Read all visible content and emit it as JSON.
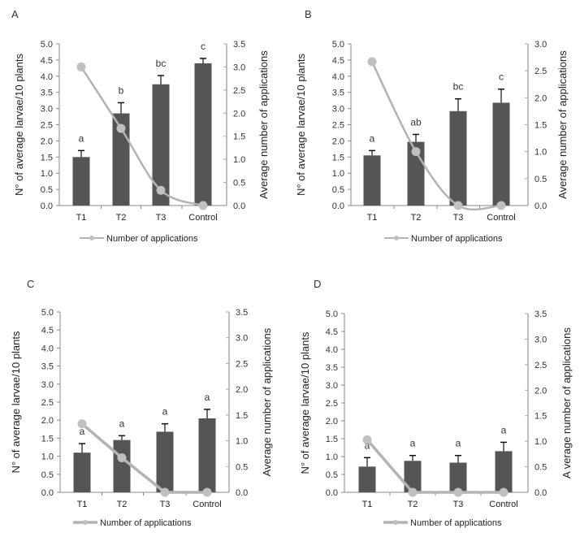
{
  "colors": {
    "bar": "#555555",
    "error_bar": "#111111",
    "line": "#b3b3b3",
    "marker": "#c0c0c0",
    "left_axis": "#888888",
    "right_axis": "#aaaaaa"
  },
  "chart_data": [
    {
      "id": "A",
      "type": "bar",
      "panel_label": "A",
      "categories": [
        "T1",
        "T2",
        "T3",
        "Control"
      ],
      "bars": {
        "values": [
          1.5,
          2.85,
          3.75,
          4.4
        ],
        "errors": [
          0.2,
          0.33,
          0.27,
          0.15
        ],
        "significance": [
          "a",
          "b",
          "bc",
          "c"
        ]
      },
      "line": {
        "name": "Number of applications",
        "values": [
          3.0,
          1.67,
          0.33,
          0.0
        ],
        "style": "smooth"
      },
      "ylabel": "N° of average larvae/10 plants",
      "y2label": "Average number  of applications",
      "ylim": [
        0,
        5
      ],
      "yticks": [
        "0.0",
        "0.5",
        "1.0",
        "1.5",
        "2.0",
        "2.5",
        "3.0",
        "3.5",
        "4.0",
        "4.5",
        "5.0"
      ],
      "y2lim": [
        0,
        3.5
      ],
      "y2ticks": [
        "0.0",
        "0.5",
        "1.0",
        "1.5",
        "2.0",
        "2.5",
        "3.0",
        "3.5"
      ],
      "legend": {
        "label": "Number of applications",
        "placement": "bottom"
      },
      "grid": false
    },
    {
      "id": "B",
      "type": "bar",
      "panel_label": "B",
      "categories": [
        "T1",
        "T2",
        "T3",
        "Control"
      ],
      "bars": {
        "values": [
          1.55,
          1.97,
          2.92,
          3.18
        ],
        "errors": [
          0.15,
          0.23,
          0.38,
          0.42
        ],
        "significance": [
          "a",
          "ab",
          "bc",
          "c"
        ]
      },
      "line": {
        "name": "Number of applications",
        "values": [
          2.67,
          1.0,
          0.0,
          0.0
        ],
        "style": "smooth"
      },
      "ylabel": "N° of average  larvae/10 plants",
      "y2label": "Average number  of applications",
      "ylim": [
        0,
        5
      ],
      "yticks": [
        "0.0",
        "0.5",
        "1.0",
        "1.5",
        "2.0",
        "2.5",
        "3.0",
        "3.5",
        "4.0",
        "4.5",
        "5.0"
      ],
      "y2lim": [
        0,
        3.0
      ],
      "y2ticks": [
        "0.0",
        "0.5",
        "1.0",
        "1.5",
        "2.0",
        "2.5",
        "3.0"
      ],
      "legend": {
        "label": "Number of applications",
        "placement": "bottom"
      },
      "grid": false
    },
    {
      "id": "C",
      "type": "bar",
      "panel_label": "C",
      "categories": [
        "T1",
        "T2",
        "T3",
        "Control"
      ],
      "bars": {
        "values": [
          1.1,
          1.45,
          1.68,
          2.05
        ],
        "errors": [
          0.25,
          0.12,
          0.22,
          0.25
        ],
        "significance": [
          "a",
          "a",
          "a",
          "a"
        ]
      },
      "line": {
        "name": "Number of applications",
        "values": [
          1.33,
          0.67,
          0.0,
          0.0
        ],
        "style": "straight"
      },
      "ylabel": "N° of average  larvae/10  plants",
      "y2label": "Average number  of applications",
      "ylim": [
        0,
        5
      ],
      "yticks": [
        "0.0",
        "0.5",
        "1.0",
        "1.5",
        "2.0",
        "2.5",
        "3.0",
        "3.5",
        "4.0",
        "4.5",
        "5.0"
      ],
      "y2lim": [
        0,
        3.5
      ],
      "y2ticks": [
        "0.0",
        "0.5",
        "1.0",
        "1.5",
        "2.0",
        "2.5",
        "3.0",
        "3.5"
      ],
      "legend": {
        "label": "Number of applications",
        "placement": "bottom"
      },
      "grid": false
    },
    {
      "id": "D",
      "type": "bar",
      "panel_label": "D",
      "categories": [
        "T1",
        "T2",
        "T3",
        "Control"
      ],
      "bars": {
        "values": [
          0.72,
          0.88,
          0.83,
          1.15
        ],
        "errors": [
          0.25,
          0.15,
          0.2,
          0.25
        ],
        "significance": [
          "a",
          "a",
          "a",
          "a"
        ]
      },
      "line": {
        "name": "Number of applications",
        "values": [
          1.03,
          0.0,
          0.0,
          0.0
        ],
        "style": "straight"
      },
      "ylabel": "N° of average larvae/10  plants",
      "y2label": "A verage number  of applications",
      "ylim": [
        0,
        5
      ],
      "yticks": [
        "0.0",
        "0.5",
        "1.0",
        "1.5",
        "2.0",
        "2.5",
        "3.0",
        "3.5",
        "4.0",
        "4.5",
        "5.0"
      ],
      "y2lim": [
        0,
        3.5
      ],
      "y2ticks": [
        "0.0",
        "0.5",
        "1.0",
        "1.5",
        "2.0",
        "2.5",
        "3.0",
        "3.5"
      ],
      "legend": {
        "label": "Number of applications",
        "placement": "bottom"
      },
      "grid": false
    }
  ]
}
